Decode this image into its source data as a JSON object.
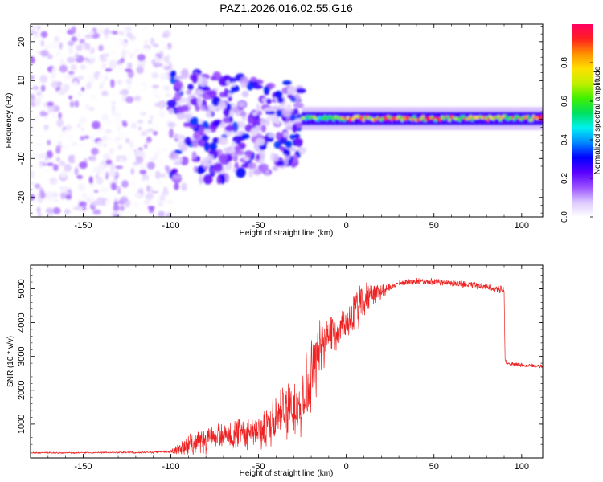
{
  "title": "PAZ1.2026.016.02.55.G16",
  "chart_data": [
    {
      "type": "heatmap",
      "name": "spectrogram",
      "xlabel": "Height of straight line (km)",
      "ylabel": "Frequency (Hz)",
      "xlim": [
        -180,
        112
      ],
      "ylim": [
        -25,
        24.5
      ],
      "x_ticks": [
        -150,
        -100,
        -50,
        0,
        50,
        100
      ],
      "y_ticks": [
        -20,
        -10,
        0,
        10,
        20
      ],
      "regions": [
        {
          "description": "scattered low-amplitude speckle",
          "x_range": [
            -180,
            -100
          ],
          "freq_range": [
            -25,
            24
          ],
          "amplitude_range": [
            0.0,
            0.15
          ]
        },
        {
          "description": "broad medium-amplitude patches",
          "x_range": [
            -100,
            -25
          ],
          "freq_range": [
            -18,
            10
          ],
          "amplitude_range": [
            0.05,
            0.35
          ]
        },
        {
          "description": "narrow carrier line near 0 Hz",
          "x_range": [
            -25,
            112
          ],
          "freq_range": [
            -1.5,
            2
          ],
          "amplitude_range": [
            0.3,
            1.0
          ]
        }
      ],
      "colorbar": {
        "label": "Normalized spectral amplitude",
        "range": [
          0,
          1
        ],
        "ticks": [
          "0.0",
          "0.2",
          "0.4",
          "0.6",
          "0.8"
        ],
        "colors": [
          "#ffffff",
          "#dcc8ff",
          "#9a50ff",
          "#5a00ff",
          "#0000ff",
          "#0088ff",
          "#00f0f0",
          "#00e060",
          "#40f000",
          "#c0f000",
          "#ffe000",
          "#ff9000",
          "#ff2020",
          "#ff0060"
        ]
      }
    },
    {
      "type": "line",
      "name": "snr",
      "xlabel": "Height of straight line (km)",
      "ylabel": "SNR (10 * v/v)",
      "xlim": [
        -180,
        112
      ],
      "ylim": [
        0,
        5700
      ],
      "x_ticks": [
        -150,
        -100,
        -50,
        0,
        50,
        100
      ],
      "y_ticks": [
        1000,
        2000,
        3000,
        4000,
        5000
      ],
      "color": "#ee2222",
      "series": [
        {
          "name": "SNR",
          "x": [
            -180,
            -160,
            -140,
            -120,
            -110,
            -100,
            -95,
            -90,
            -85,
            -80,
            -75,
            -70,
            -65,
            -60,
            -55,
            -50,
            -45,
            -40,
            -35,
            -30,
            -25,
            -22,
            -20,
            -17,
            -15,
            -12,
            -10,
            -8,
            -5,
            -2,
            0,
            3,
            5,
            8,
            10,
            13,
            15,
            18,
            20,
            23,
            25,
            28,
            30,
            35,
            40,
            50,
            60,
            70,
            80,
            85,
            90,
            90.5,
            92,
            95,
            100,
            105,
            112
          ],
          "y": [
            150,
            150,
            155,
            160,
            170,
            190,
            250,
            350,
            450,
            550,
            600,
            650,
            700,
            750,
            800,
            850,
            950,
            1150,
            1350,
            1550,
            1800,
            2100,
            2400,
            2800,
            3200,
            3500,
            3700,
            3750,
            3800,
            3900,
            4000,
            4200,
            4350,
            4550,
            4700,
            4750,
            4800,
            4850,
            4950,
            5000,
            5050,
            5100,
            5150,
            5200,
            5230,
            5200,
            5170,
            5120,
            5050,
            5000,
            4950,
            2900,
            2800,
            2780,
            2750,
            2730,
            2700
          ],
          "noise_amplitude": [
            20,
            20,
            20,
            25,
            30,
            40,
            150,
            250,
            300,
            350,
            350,
            350,
            400,
            400,
            420,
            450,
            550,
            600,
            700,
            750,
            900,
            1000,
            1000,
            900,
            700,
            650,
            600,
            550,
            500,
            450,
            450,
            500,
            550,
            550,
            450,
            350,
            300,
            250,
            200,
            150,
            120,
            90,
            80,
            80,
            80,
            80,
            80,
            80,
            80,
            90,
            100,
            60,
            50,
            50,
            50,
            50,
            50
          ]
        }
      ]
    }
  ]
}
